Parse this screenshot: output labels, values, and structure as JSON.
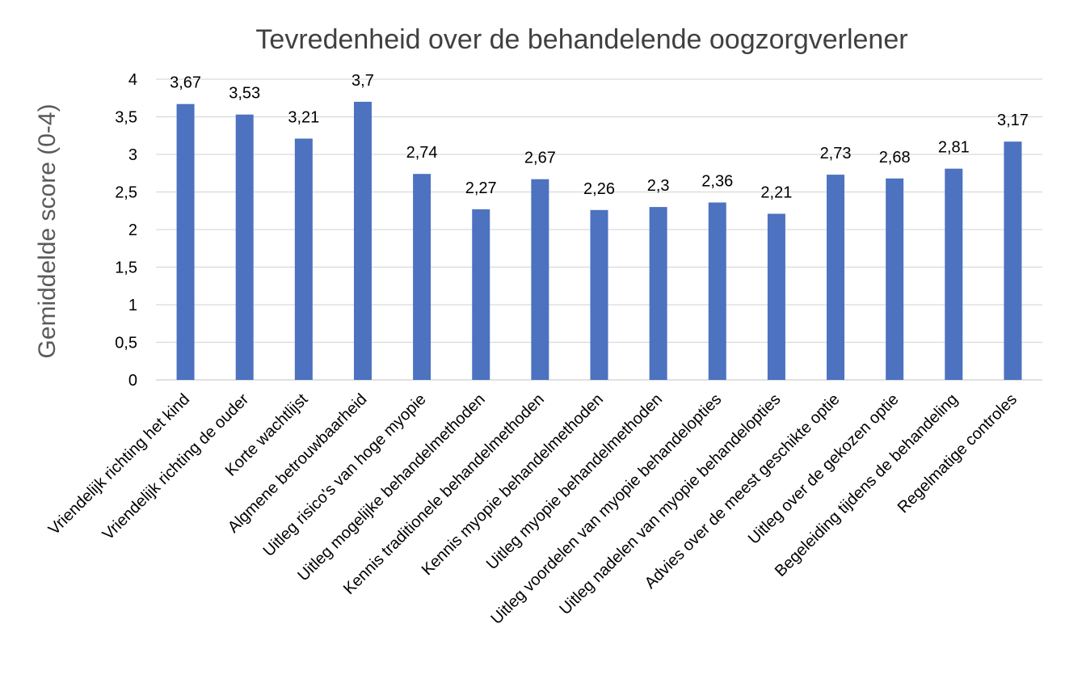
{
  "colors": {
    "bar": "#4C72C0",
    "grid": "#D9D9D9",
    "text": "#000000",
    "title": "#404040",
    "axis_title": "#595959"
  },
  "chart_data": {
    "type": "bar",
    "title": "Tevredenheid over de behandelende oogzorgverlener",
    "xlabel": "",
    "ylabel": "Gemiddelde score (0-4)",
    "ylim": [
      0,
      4
    ],
    "ytick_step": 0.5,
    "yticks": [
      "0",
      "0,5",
      "1",
      "1,5",
      "2",
      "2,5",
      "3",
      "3,5",
      "4"
    ],
    "grid": true,
    "categories": [
      "Vriendelijk richting het kind",
      "Vriendelijk richting de ouder",
      "Korte wachtlijst",
      "Algmene betrouwbaarheid",
      "Uitleg risico's van hoge myopie",
      "Uitleg mogelijke behandelmethoden",
      "Kennis traditionele behandelmethoden",
      "Kennis myopie behandelmethoden",
      "Uitleg myopie behandelmethoden",
      "Uitleg voordelen van myopie behandelopties",
      "Uitleg nadelen van myopie behandelopties",
      "Advies over de meest geschikte optie",
      "Uitleg over de gekozen optie",
      "Begeleiding tijdens de behandeling",
      "Regelmatige controles"
    ],
    "values": [
      3.67,
      3.53,
      3.21,
      3.7,
      2.74,
      2.27,
      2.67,
      2.26,
      2.3,
      2.36,
      2.21,
      2.73,
      2.68,
      2.81,
      3.17
    ],
    "value_labels": [
      "3,67",
      "3,53",
      "3,21",
      "3,7",
      "2,74",
      "2,27",
      "2,67",
      "2,26",
      "2,3",
      "2,36",
      "2,21",
      "2,73",
      "2,68",
      "2,81",
      "3,17"
    ]
  }
}
